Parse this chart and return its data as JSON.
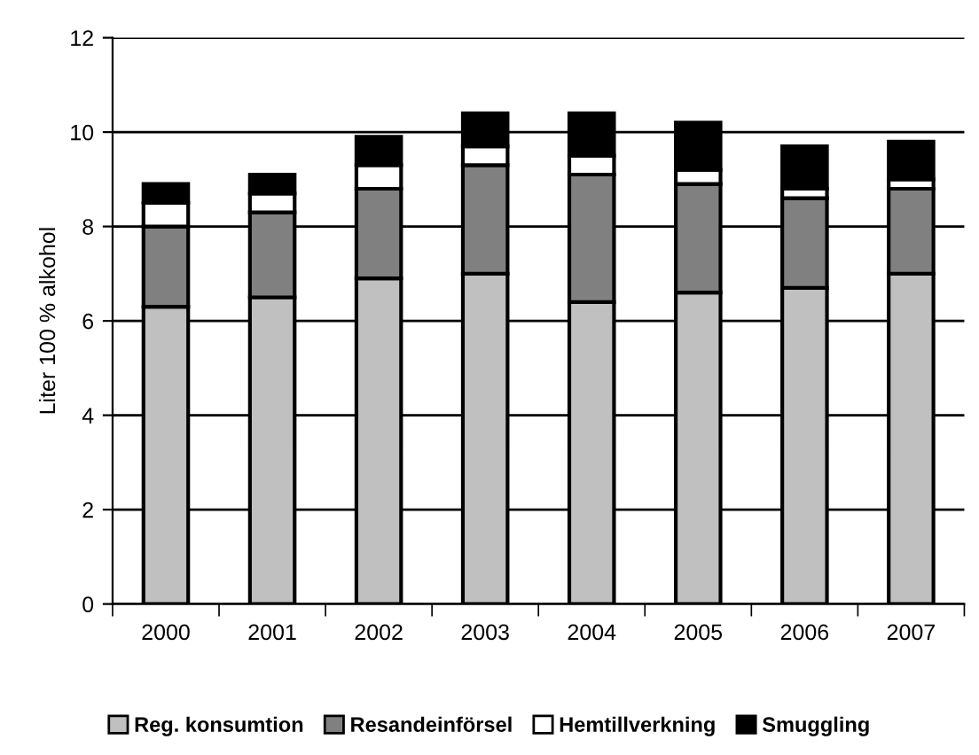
{
  "chart_data": {
    "type": "bar",
    "stacked": true,
    "ylabel": "Liter 100 % alkohol",
    "categories": [
      "2000",
      "2001",
      "2002",
      "2003",
      "2004",
      "2005",
      "2006",
      "2007"
    ],
    "series": [
      {
        "name": "Reg. konsumtion",
        "color": "#c0c0c0",
        "values": [
          6.3,
          6.5,
          6.9,
          7.0,
          6.4,
          6.6,
          6.7,
          7.0
        ]
      },
      {
        "name": "Resandeinförsel",
        "color": "#808080",
        "values": [
          1.7,
          1.8,
          1.9,
          2.3,
          2.7,
          2.3,
          1.9,
          1.8
        ]
      },
      {
        "name": "Hemtillverkning",
        "color": "#ffffff",
        "values": [
          0.5,
          0.4,
          0.5,
          0.4,
          0.4,
          0.3,
          0.2,
          0.2
        ]
      },
      {
        "name": "Smuggling",
        "color": "#000000",
        "values": [
          0.4,
          0.4,
          0.6,
          0.7,
          0.9,
          1.0,
          0.9,
          0.8
        ]
      }
    ],
    "ylim": [
      0,
      12
    ],
    "yticks": [
      0,
      2,
      4,
      6,
      8,
      10,
      12
    ],
    "grid": "y",
    "legend": "bottom"
  }
}
